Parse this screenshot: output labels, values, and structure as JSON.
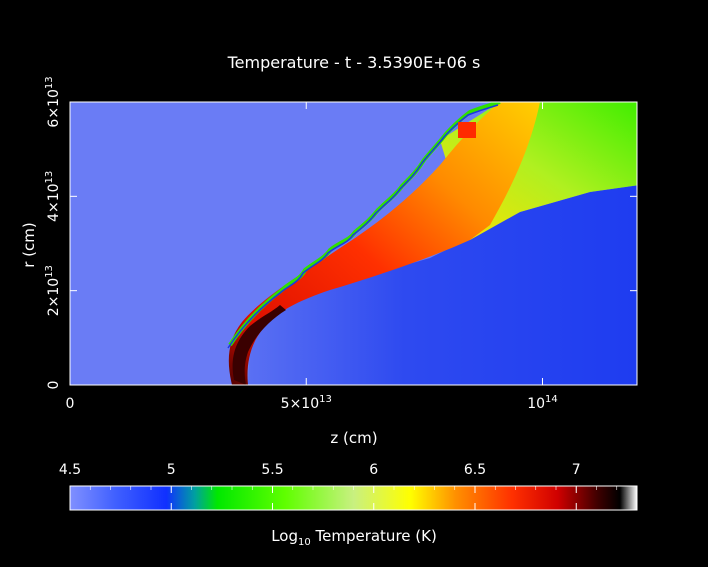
{
  "chart_data": {
    "type": "heatmap",
    "title": "Temperature - t - 3.5390E+06 s",
    "xlabel": "z (cm)",
    "ylabel": "r (cm)",
    "xlim": [
      0,
      120000000000000.0
    ],
    "ylim": [
      0,
      60000000000000.0
    ],
    "x_ticks": [
      {
        "value": 0,
        "base": "0",
        "exp": ""
      },
      {
        "value": 50000000000000.0,
        "base": "5×10",
        "exp": "13"
      },
      {
        "value": 100000000000000.0,
        "base": "10",
        "exp": "14"
      }
    ],
    "y_ticks": [
      {
        "value": 0,
        "base": "0",
        "exp": ""
      },
      {
        "value": 20000000000000.0,
        "base": "2×10",
        "exp": "13"
      },
      {
        "value": 40000000000000.0,
        "base": "4×10",
        "exp": "13"
      },
      {
        "value": 60000000000000.0,
        "base": "6×10",
        "exp": "13"
      }
    ],
    "colorbar": {
      "label_pre": "Log",
      "label_sub": "10",
      "label_post": " Temperature (K)",
      "range": [
        4.5,
        7.3
      ],
      "ticks": [
        "4.5",
        "5",
        "5.5",
        "6",
        "6.5",
        "7"
      ],
      "tick_values": [
        4.5,
        5,
        5.5,
        6,
        6.5,
        7
      ]
    },
    "colors": {
      "ambient": "#6a7cf5",
      "shadow": "#2a46f0",
      "cold_blue": "#1e3cf0",
      "green": "#2ef000",
      "yellow": "#ffff00",
      "orange": "#ff8a00",
      "red": "#ff2a00",
      "dark_red": "#6a0000",
      "black": "#000000"
    },
    "grid": false
  }
}
